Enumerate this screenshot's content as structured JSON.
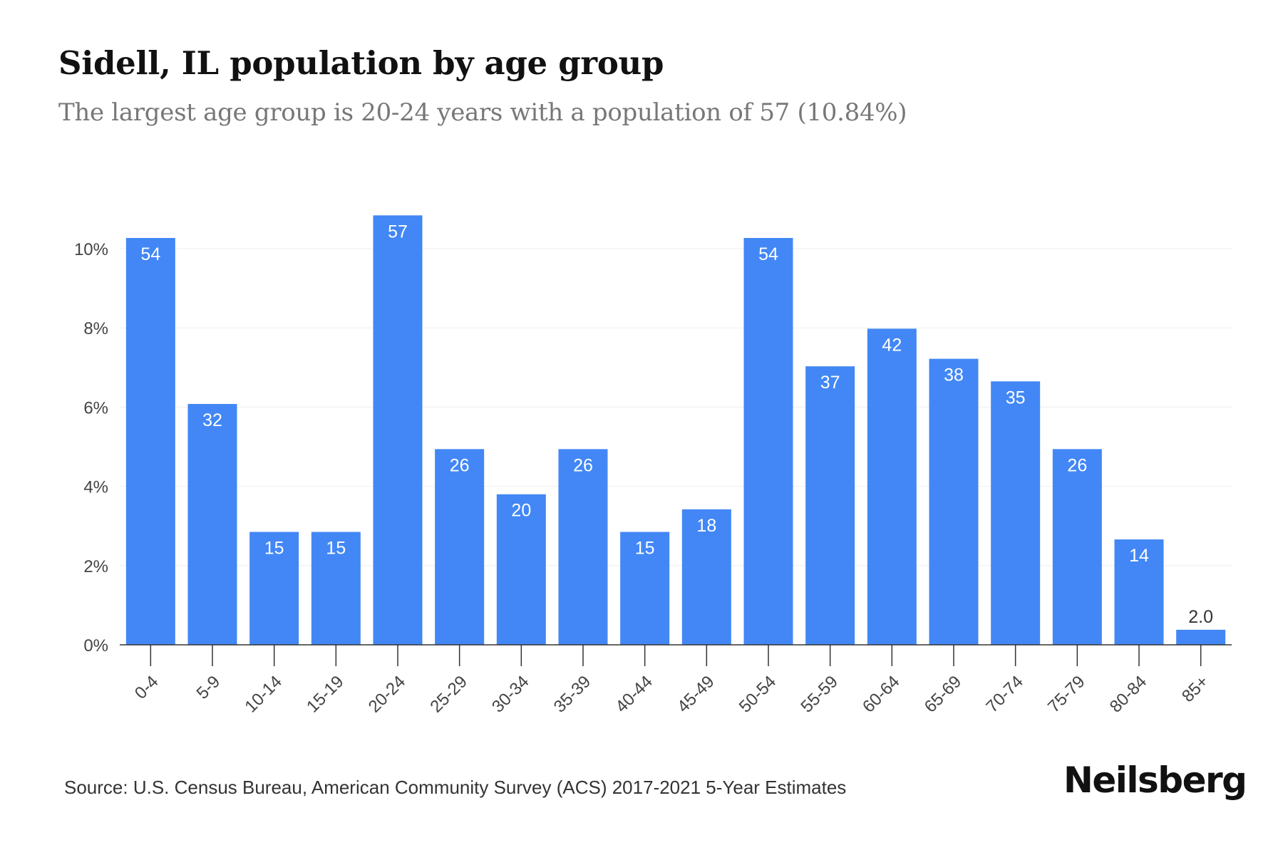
{
  "title": "Sidell, IL population by age group",
  "subtitle": "The largest age group is 20-24 years with a population of 57 (10.84%)",
  "source": "Source: U.S. Census Bureau, American Community Survey (ACS) 2017-2021 5-Year Estimates",
  "brand": "Neilsberg",
  "colors": {
    "bar": "#4287f5",
    "label_inside": "#ffffff",
    "label_outside": "#333333",
    "grid": "#eeeeee",
    "axis": "#333333",
    "tick_text": "#444444"
  },
  "chart_data": {
    "type": "bar",
    "categories": [
      "0-4",
      "5-9",
      "10-14",
      "15-19",
      "20-24",
      "25-29",
      "30-34",
      "35-39",
      "40-44",
      "45-49",
      "50-54",
      "55-59",
      "60-64",
      "65-69",
      "70-74",
      "75-79",
      "80-84",
      "85+"
    ],
    "values": [
      10.27,
      6.08,
      2.85,
      2.85,
      10.84,
      4.94,
      3.8,
      4.94,
      2.85,
      3.42,
      10.27,
      7.03,
      7.98,
      7.22,
      6.65,
      4.94,
      2.66,
      0.38
    ],
    "data_labels": [
      "54",
      "32",
      "15",
      "15",
      "57",
      "26",
      "20",
      "26",
      "15",
      "18",
      "54",
      "37",
      "42",
      "38",
      "35",
      "26",
      "14",
      "2.0"
    ],
    "yticks": [
      "0%",
      "2%",
      "4%",
      "6%",
      "8%",
      "10%"
    ],
    "ytick_values": [
      0,
      2,
      4,
      6,
      8,
      10
    ],
    "ylim": [
      0,
      11
    ],
    "grid": true,
    "legend": "none"
  }
}
